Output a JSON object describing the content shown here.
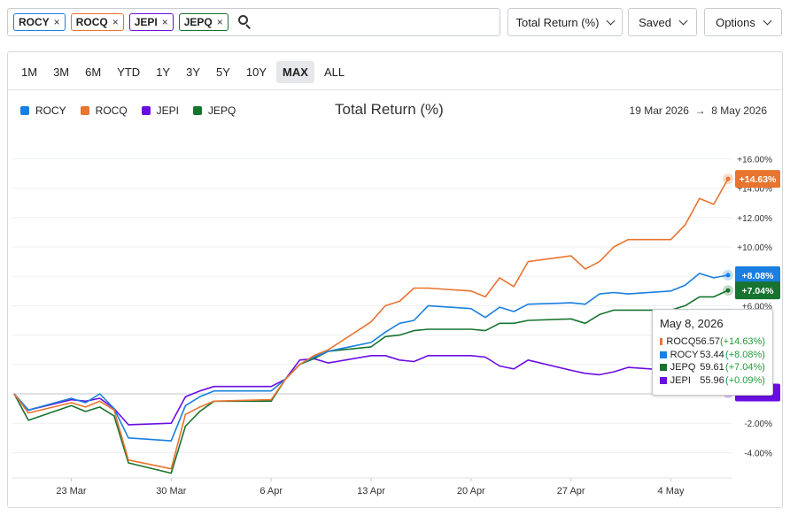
{
  "tickers": [
    {
      "symbol": "ROCY",
      "color": "#1a7fe0"
    },
    {
      "symbol": "ROCQ",
      "color": "#e8742f"
    },
    {
      "symbol": "JEPI",
      "color": "#6a0de3"
    },
    {
      "symbol": "JEPQ",
      "color": "#177330"
    }
  ],
  "chip_close": "×",
  "controls": {
    "metric": "Total Return (%)",
    "saved": "Saved",
    "options": "Options"
  },
  "ranges": [
    "1M",
    "3M",
    "6M",
    "YTD",
    "1Y",
    "3Y",
    "5Y",
    "10Y",
    "MAX",
    "ALL"
  ],
  "active_range": "MAX",
  "date_range": {
    "start": "19 Mar 2026",
    "arrow": "→",
    "end": "8 May 2026"
  },
  "tooltip": {
    "date": "May 8, 2026",
    "rows": [
      {
        "symbol": "ROCQ",
        "color": "#e8742f",
        "price": "56.57",
        "change": "(+14.63%)"
      },
      {
        "symbol": "ROCY",
        "color": "#1a7fe0",
        "price": "53.44",
        "change": "(+8.08%)"
      },
      {
        "symbol": "JEPQ",
        "color": "#177330",
        "price": "59.61",
        "change": "(+7.04%)"
      },
      {
        "symbol": "JEPI",
        "color": "#6a0de3",
        "price": "55.96",
        "change": "(+0.09%)"
      }
    ]
  },
  "chart_data": {
    "type": "line",
    "title": "Total Return (%)",
    "x_tick_labels": [
      "23 Mar",
      "30 Mar",
      "6 Apr",
      "13 Apr",
      "20 Apr",
      "27 Apr",
      "4 May"
    ],
    "y_tick_labels": [
      "+16.00%",
      "+14.00%",
      "+12.00%",
      "+10.00%",
      "+8.00%",
      "+6.00%",
      "+4.00%",
      "+2.00%",
      "0.00%",
      "-2.00%",
      "-4.00%"
    ],
    "ylim": [
      -6,
      17
    ],
    "grid": true,
    "legend_position": "top-left",
    "x": [
      "2026-03-19",
      "2026-03-20",
      "2026-03-23",
      "2026-03-24",
      "2026-03-25",
      "2026-03-26",
      "2026-03-27",
      "2026-03-30",
      "2026-03-31",
      "2026-04-01",
      "2026-04-02",
      "2026-04-06",
      "2026-04-07",
      "2026-04-08",
      "2026-04-09",
      "2026-04-10",
      "2026-04-13",
      "2026-04-14",
      "2026-04-15",
      "2026-04-16",
      "2026-04-17",
      "2026-04-20",
      "2026-04-21",
      "2026-04-22",
      "2026-04-23",
      "2026-04-24",
      "2026-04-27",
      "2026-04-28",
      "2026-04-29",
      "2026-04-30",
      "2026-05-01",
      "2026-05-04",
      "2026-05-05",
      "2026-05-06",
      "2026-05-07",
      "2026-05-08"
    ],
    "series": [
      {
        "name": "ROCY",
        "color": "#1a7fe0",
        "last_label": "+8.08%",
        "values": [
          0.0,
          -1.1,
          -0.3,
          -0.6,
          0.0,
          -1.0,
          -3.0,
          -3.2,
          -0.8,
          -0.2,
          0.2,
          0.2,
          1.0,
          2.0,
          2.5,
          2.9,
          3.5,
          4.2,
          4.8,
          5.0,
          6.0,
          5.8,
          5.2,
          5.9,
          5.6,
          6.1,
          6.2,
          6.1,
          6.8,
          6.9,
          6.8,
          7.0,
          7.4,
          8.2,
          7.9,
          8.08
        ]
      },
      {
        "name": "ROCQ",
        "color": "#e8742f",
        "last_label": "+14.63%",
        "values": [
          0.0,
          -1.3,
          -0.6,
          -0.9,
          -0.5,
          -1.1,
          -4.5,
          -5.1,
          -1.4,
          -0.9,
          -0.5,
          -0.4,
          1.0,
          2.0,
          2.6,
          3.0,
          4.9,
          6.0,
          6.3,
          7.2,
          7.2,
          7.0,
          6.6,
          7.9,
          7.3,
          9.0,
          9.4,
          8.5,
          9.0,
          10.0,
          10.5,
          10.5,
          11.5,
          13.3,
          12.9,
          14.63
        ]
      },
      {
        "name": "JEPI",
        "color": "#6a0de3",
        "last_label": "",
        "values": [
          0.0,
          -1.1,
          -0.4,
          -0.5,
          -0.3,
          -1.0,
          -2.1,
          -2.0,
          -0.2,
          0.2,
          0.5,
          0.5,
          1.0,
          2.3,
          2.4,
          2.1,
          2.6,
          2.6,
          2.3,
          2.2,
          2.6,
          2.6,
          2.5,
          1.9,
          1.7,
          2.3,
          1.6,
          1.4,
          1.3,
          1.5,
          1.8,
          1.6,
          1.5,
          1.3,
          0.5,
          0.09
        ]
      },
      {
        "name": "JEPQ",
        "color": "#177330",
        "last_label": "+7.04%",
        "values": [
          0.0,
          -1.8,
          -0.8,
          -1.2,
          -0.9,
          -1.5,
          -4.7,
          -5.4,
          -2.2,
          -1.2,
          -0.5,
          -0.5,
          1.0,
          2.0,
          2.4,
          2.9,
          3.2,
          3.9,
          4.0,
          4.3,
          4.4,
          4.4,
          4.3,
          4.8,
          4.8,
          5.0,
          5.1,
          4.8,
          5.4,
          5.7,
          5.7,
          5.7,
          6.0,
          6.6,
          6.6,
          7.04
        ]
      }
    ]
  }
}
